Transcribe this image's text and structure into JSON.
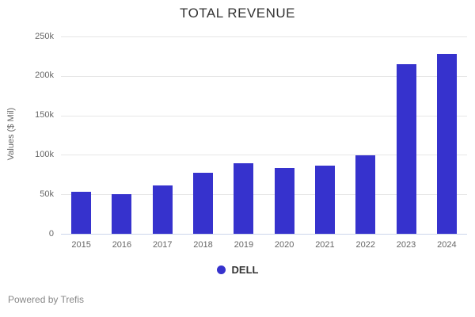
{
  "title": "TOTAL REVENUE",
  "legend": {
    "items": [
      {
        "label": "DELL",
        "color": "#3632cd"
      }
    ]
  },
  "footer": "Powered by Trefis",
  "colors": {
    "bar": "#3632cd",
    "gridline": "#e6e6e6",
    "axis_line": "#ccd6eb",
    "axis_label": "#666666",
    "title_text": "#333333"
  },
  "chart_data": {
    "type": "bar",
    "title": "TOTAL REVENUE",
    "xlabel": "",
    "ylabel": "Values ($ Mil)",
    "categories": [
      "2015",
      "2016",
      "2017",
      "2018",
      "2019",
      "2020",
      "2021",
      "2022",
      "2023",
      "2024"
    ],
    "series": [
      {
        "name": "DELL",
        "color": "#3632cd",
        "values": [
          53300,
          50600,
          61000,
          77500,
          89500,
          83400,
          86300,
          99800,
          214400,
          228400
        ]
      }
    ],
    "ylim": [
      0,
      250000
    ],
    "yticks": [
      {
        "value": 0,
        "label": "0"
      },
      {
        "value": 50000,
        "label": "50k"
      },
      {
        "value": 100000,
        "label": "100k"
      },
      {
        "value": 150000,
        "label": "150k"
      },
      {
        "value": 200000,
        "label": "200k"
      },
      {
        "value": 250000,
        "label": "250k"
      }
    ],
    "grid": true,
    "legend_position": "bottom"
  }
}
